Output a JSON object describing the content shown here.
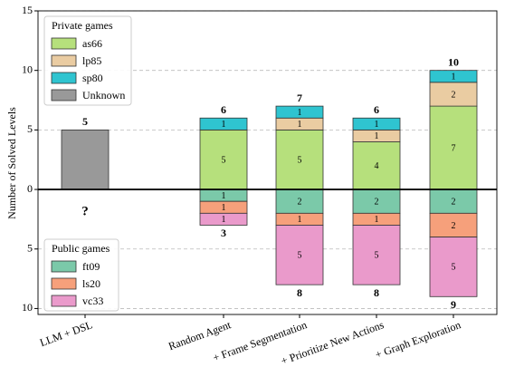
{
  "chart_data": {
    "type": "diverging_stacked_bar",
    "ylabel": "Number of Solved Levels",
    "categories": [
      "LLM + DSL",
      "Random Agent",
      "+ Frame Segmentation",
      "+ Prioritize New Actions",
      "+ Graph Exploration"
    ],
    "series": [
      {
        "name": "as66",
        "color": "#b6e07c",
        "side": "above",
        "labeled": true,
        "values": [
          null,
          5,
          5,
          4,
          7
        ]
      },
      {
        "name": "lp85",
        "color": "#eaccA2",
        "side": "above",
        "labeled": true,
        "values": [
          null,
          null,
          1,
          1,
          2
        ]
      },
      {
        "name": "sp80",
        "color": "#2fc4d0",
        "side": "above",
        "labeled": true,
        "values": [
          null,
          1,
          1,
          1,
          1
        ]
      },
      {
        "name": "Unknown",
        "color": "#999999",
        "side": "above",
        "labeled": false,
        "values": [
          5,
          null,
          null,
          null,
          null
        ]
      },
      {
        "name": "ft09",
        "color": "#7bc9a9",
        "side": "below",
        "labeled": true,
        "values": [
          null,
          1,
          2,
          2,
          2
        ]
      },
      {
        "name": "ls20",
        "color": "#f6a07b",
        "side": "below",
        "labeled": true,
        "values": [
          null,
          1,
          1,
          1,
          2
        ]
      },
      {
        "name": "vc33",
        "color": "#ea9acb",
        "side": "below",
        "labeled": true,
        "values": [
          null,
          1,
          5,
          5,
          5
        ]
      }
    ],
    "above_totals": [
      5,
      6,
      7,
      6,
      10
    ],
    "below_totals": [
      null,
      3,
      8,
      8,
      9
    ],
    "unknown_below_label": "?",
    "legend_titles": {
      "above": "Private games",
      "below": "Public games"
    },
    "ylim": [
      -10.5,
      15
    ],
    "yticks": [
      {
        "value": -10,
        "label": "10"
      },
      {
        "value": -5,
        "label": "5"
      },
      0,
      5,
      10,
      15
    ],
    "grid": true
  }
}
